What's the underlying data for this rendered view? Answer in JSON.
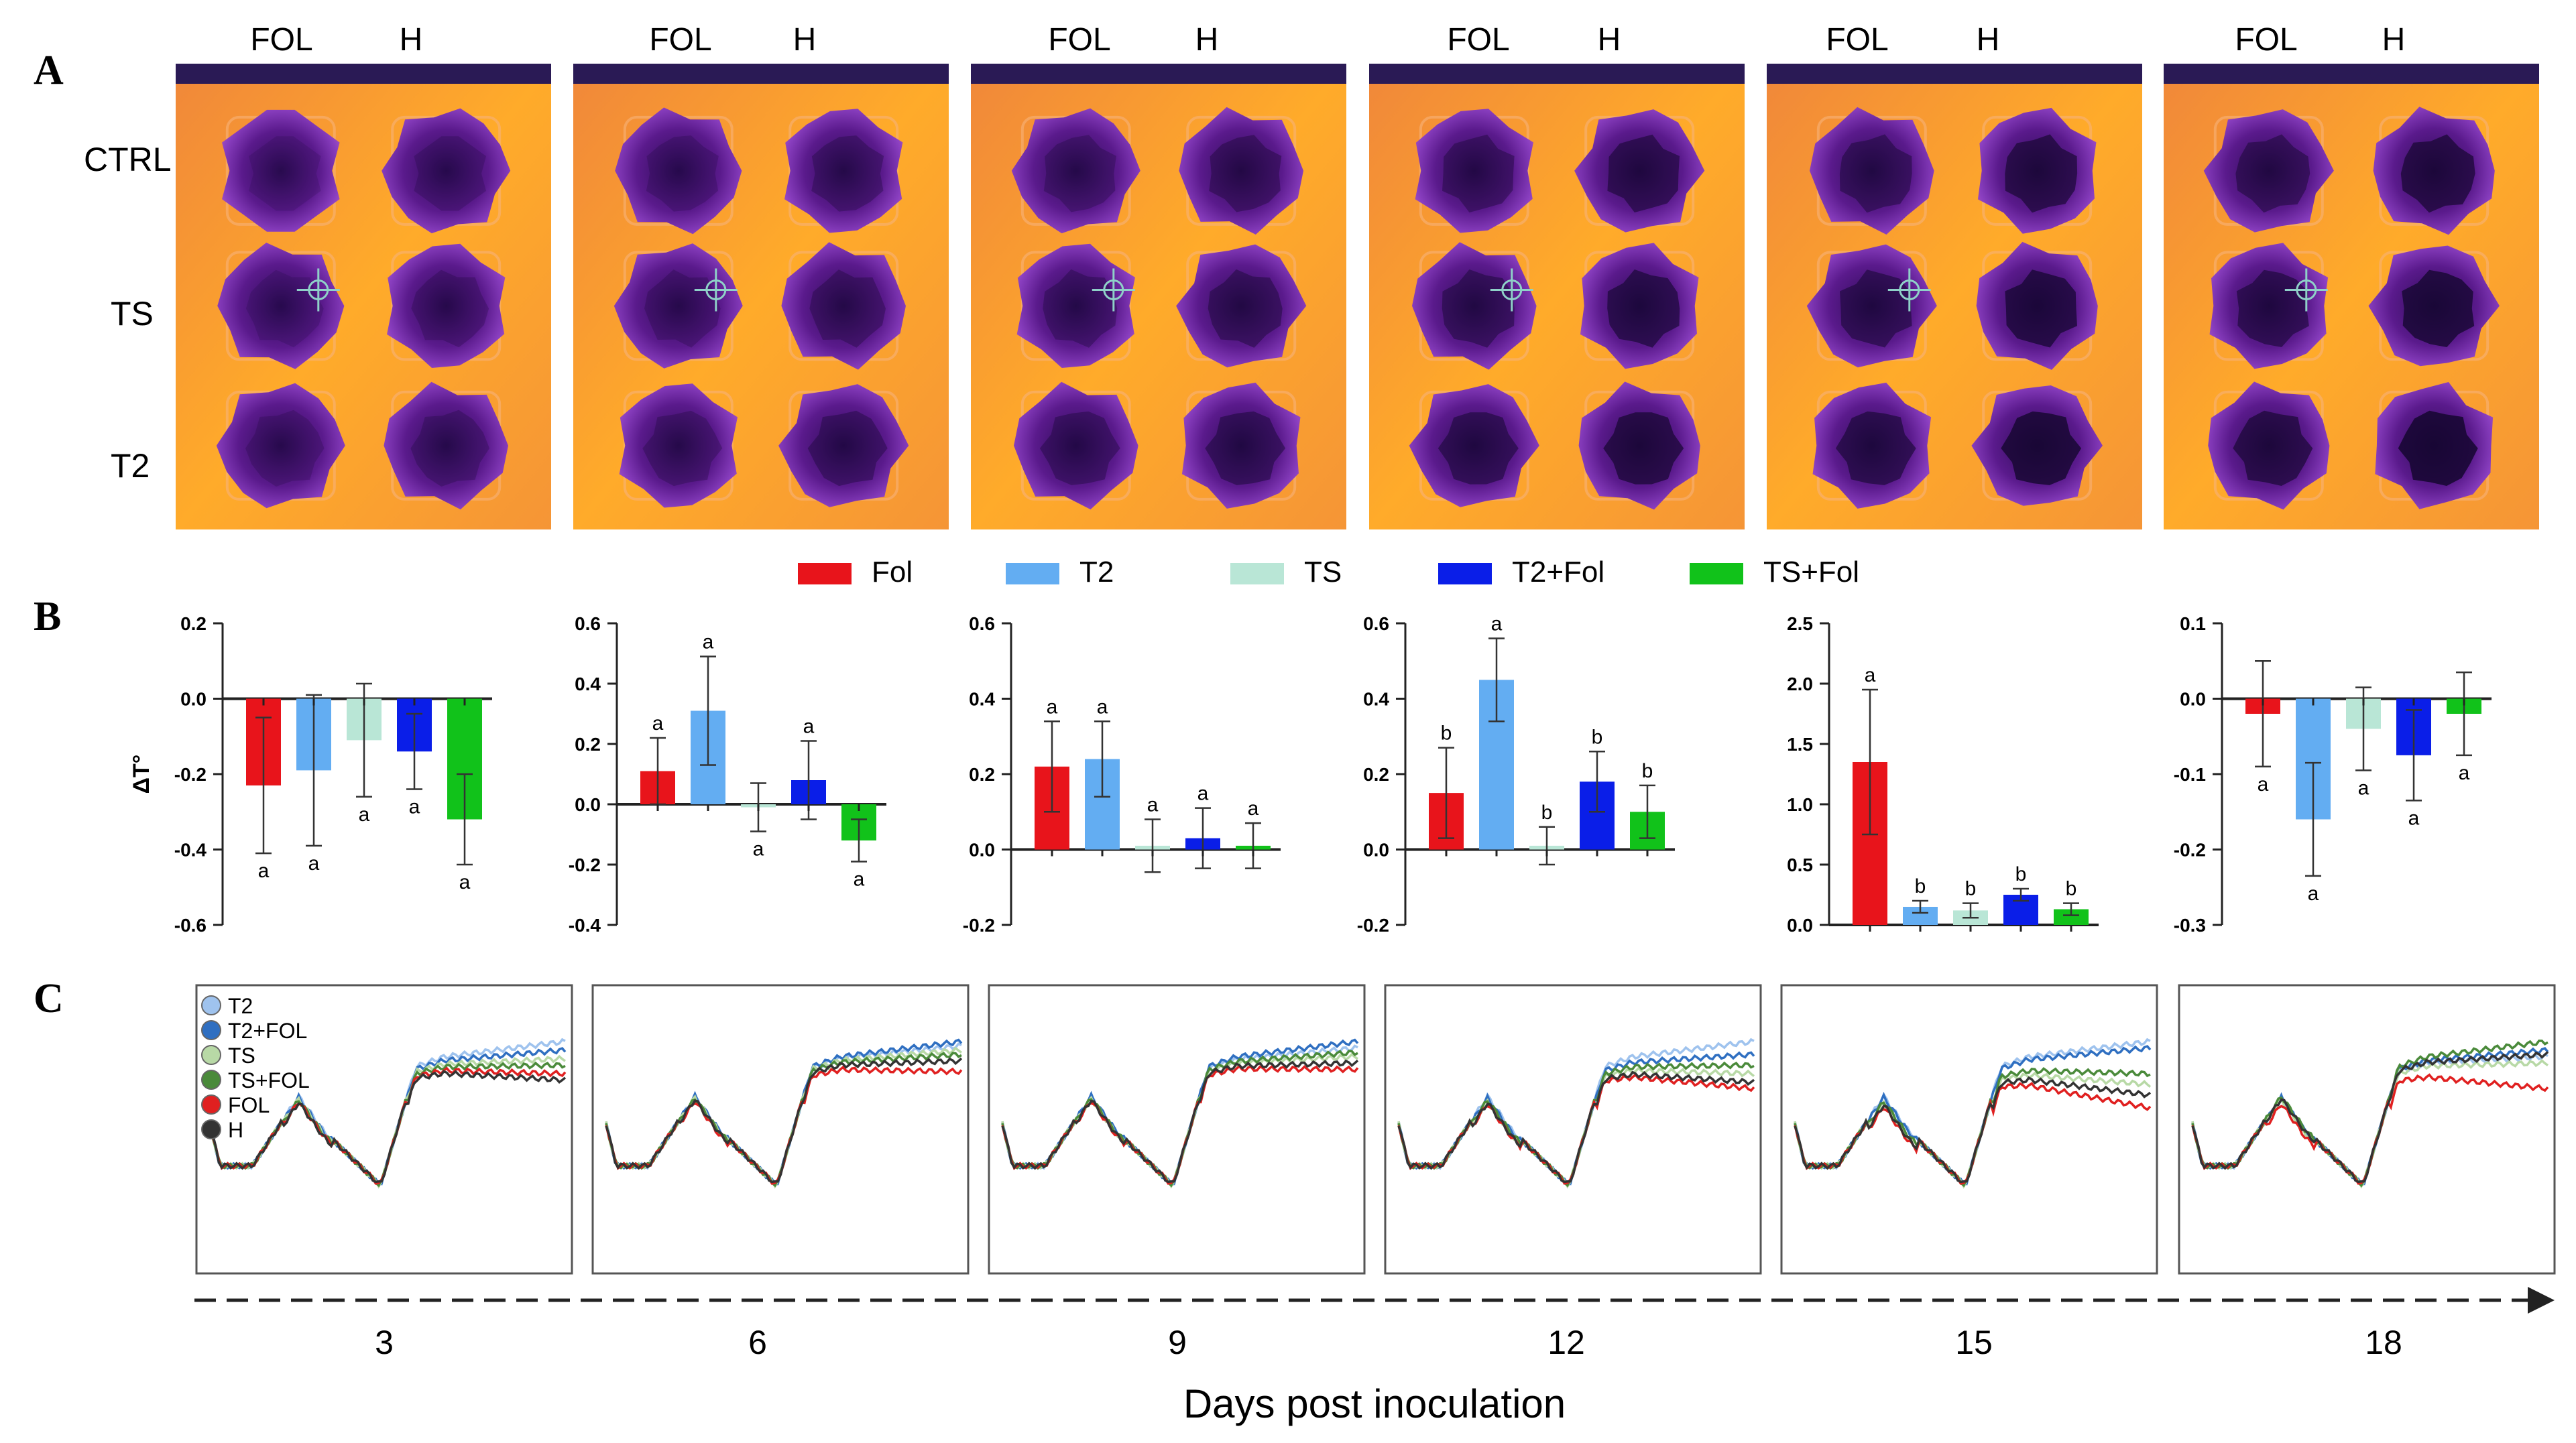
{
  "panel_labels": [
    "A",
    "B",
    "C"
  ],
  "panel_a": {
    "column_header_fol": "FOL",
    "column_header_h": "H",
    "row_labels": [
      "CTRL",
      "TS",
      "T2"
    ],
    "thermal_colors": [
      "#2c0b54",
      "#5a1a8c",
      "#8a3fc0",
      "#c25fa0",
      "#f2873f",
      "#ffb52e",
      "#ffe08a"
    ]
  },
  "legend": [
    {
      "label": "Fol",
      "color": "#e8141b"
    },
    {
      "label": "T2",
      "color": "#63adf2"
    },
    {
      "label": "TS",
      "color": "#b9e6d6"
    },
    {
      "label": "T2+Fol",
      "color": "#0a1ee8"
    },
    {
      "label": "TS+Fol",
      "color": "#11c21a"
    }
  ],
  "x_axis_title": "Days post inoculation",
  "day_labels": [
    "3",
    "6",
    "9",
    "12",
    "15",
    "18"
  ],
  "panel_c_legend": [
    {
      "label": "T2",
      "color": "#9fc3ee"
    },
    {
      "label": "T2+FOL",
      "color": "#2f6fc1"
    },
    {
      "label": "TS",
      "color": "#b8d9a6"
    },
    {
      "label": "TS+FOL",
      "color": "#4a8a3a"
    },
    {
      "label": "FOL",
      "color": "#e02020"
    },
    {
      "label": "H",
      "color": "#333333"
    }
  ],
  "chart_data": [
    {
      "type": "bar",
      "day": "3",
      "ylabel": "ΔT°",
      "ylim": [
        -0.6,
        0.2
      ],
      "yticks": [
        "0.2",
        "0.0",
        "-0.2",
        "-0.4",
        "-0.6"
      ],
      "ytick_values": [
        0.2,
        0,
        -0.2,
        -0.4,
        -0.6
      ],
      "categories": [
        "Fol",
        "T2",
        "TS",
        "T2+Fol",
        "TS+Fol"
      ],
      "values": [
        -0.23,
        -0.19,
        -0.11,
        -0.14,
        -0.32
      ],
      "errors": [
        0.18,
        0.2,
        0.15,
        0.1,
        0.12
      ],
      "letters": [
        "a",
        "a",
        "a",
        "a",
        "a"
      ]
    },
    {
      "type": "bar",
      "day": "6",
      "ylabel": "",
      "ylim": [
        -0.4,
        0.6
      ],
      "yticks": [
        "0.6",
        "0.4",
        "0.2",
        "0.0",
        "-0.2",
        "-0.4"
      ],
      "ytick_values": [
        0.6,
        0.4,
        0.2,
        0,
        -0.2,
        -0.4
      ],
      "categories": [
        "Fol",
        "T2",
        "TS",
        "T2+Fol",
        "TS+Fol"
      ],
      "values": [
        0.11,
        0.31,
        -0.01,
        0.08,
        -0.12
      ],
      "errors": [
        0.11,
        0.18,
        0.08,
        0.13,
        0.07
      ],
      "letters": [
        "a",
        "a",
        "a",
        "a",
        "a"
      ]
    },
    {
      "type": "bar",
      "day": "9",
      "ylabel": "",
      "ylim": [
        -0.2,
        0.6
      ],
      "yticks": [
        "0.6",
        "0.4",
        "0.2",
        "0.0",
        "-0.2"
      ],
      "ytick_values": [
        0.6,
        0.4,
        0.2,
        0,
        -0.2
      ],
      "categories": [
        "Fol",
        "T2",
        "TS",
        "T2+Fol",
        "TS+Fol"
      ],
      "values": [
        0.22,
        0.24,
        0.01,
        0.03,
        0.01
      ],
      "errors": [
        0.12,
        0.1,
        0.07,
        0.08,
        0.06
      ],
      "letters": [
        "a",
        "a",
        "a",
        "a",
        "a"
      ]
    },
    {
      "type": "bar",
      "day": "12",
      "ylabel": "",
      "ylim": [
        -0.2,
        0.6
      ],
      "yticks": [
        "0.6",
        "0.4",
        "0.2",
        "0.0",
        "-0.2"
      ],
      "ytick_values": [
        0.6,
        0.4,
        0.2,
        0,
        -0.2
      ],
      "categories": [
        "Fol",
        "T2",
        "TS",
        "T2+Fol",
        "TS+Fol"
      ],
      "values": [
        0.15,
        0.45,
        0.01,
        0.18,
        0.1
      ],
      "errors": [
        0.12,
        0.11,
        0.05,
        0.08,
        0.07
      ],
      "letters": [
        "b",
        "a",
        "b",
        "b",
        "b"
      ]
    },
    {
      "type": "bar",
      "day": "15",
      "ylabel": "",
      "ylim": [
        0,
        2.5
      ],
      "yticks": [
        "2.5",
        "2.0",
        "1.5",
        "1.0",
        "0.5",
        "0.0"
      ],
      "ytick_values": [
        2.5,
        2,
        1.5,
        1,
        0.5,
        0
      ],
      "categories": [
        "Fol",
        "T2",
        "TS",
        "T2+Fol",
        "TS+Fol"
      ],
      "values": [
        1.35,
        0.15,
        0.12,
        0.25,
        0.13
      ],
      "errors": [
        0.6,
        0.05,
        0.06,
        0.05,
        0.05
      ],
      "letters": [
        "a",
        "b",
        "b",
        "b",
        "b"
      ]
    },
    {
      "type": "bar",
      "day": "18",
      "ylabel": "",
      "ylim": [
        -0.3,
        0.1
      ],
      "yticks": [
        "0.1",
        "0.0",
        "-0.1",
        "-0.2",
        "-0.3"
      ],
      "ytick_values": [
        0.1,
        0,
        -0.1,
        -0.2,
        -0.3
      ],
      "categories": [
        "Fol",
        "T2",
        "TS",
        "T2+Fol",
        "TS+Fol"
      ],
      "values": [
        -0.02,
        -0.16,
        -0.04,
        -0.075,
        -0.02
      ],
      "errors": [
        0.07,
        0.075,
        0.055,
        0.06,
        0.055
      ],
      "letters": [
        "a",
        "a",
        "a",
        "a",
        "a"
      ]
    }
  ]
}
